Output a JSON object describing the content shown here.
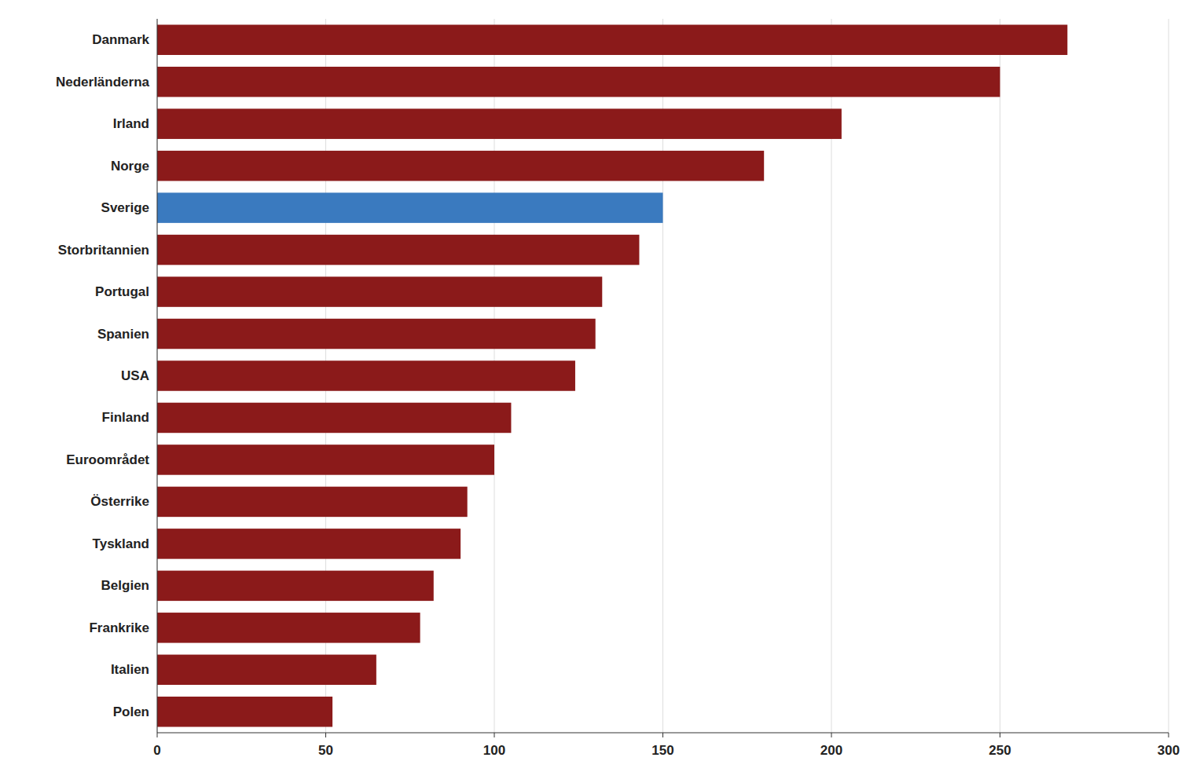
{
  "chart_data": {
    "type": "bar",
    "orientation": "horizontal",
    "categories": [
      "Danmark",
      "Nederländerna",
      "Irland",
      "Norge",
      "Sverige",
      "Storbritannien",
      "Portugal",
      "Spanien",
      "USA",
      "Finland",
      "Euroområdet",
      "Österrike",
      "Tyskland",
      "Belgien",
      "Frankrike",
      "Italien",
      "Polen"
    ],
    "values": [
      270,
      250,
      203,
      180,
      150,
      143,
      132,
      130,
      124,
      105,
      100,
      92,
      90,
      82,
      78,
      65,
      52
    ],
    "colors": [
      "#8B1a1a",
      "#8B1a1a",
      "#8B1a1a",
      "#8B1a1a",
      "#3a7abf",
      "#8B1a1a",
      "#8B1a1a",
      "#8B1a1a",
      "#8B1a1a",
      "#8B1a1a",
      "#8B1a1a",
      "#8B1a1a",
      "#8B1a1a",
      "#8B1a1a",
      "#8B1a1a",
      "#8B1a1a",
      "#8B1a1a"
    ],
    "xlim": [
      0,
      300
    ],
    "xticks": [
      0,
      50,
      100,
      150,
      200,
      250,
      300
    ],
    "grid": true
  }
}
